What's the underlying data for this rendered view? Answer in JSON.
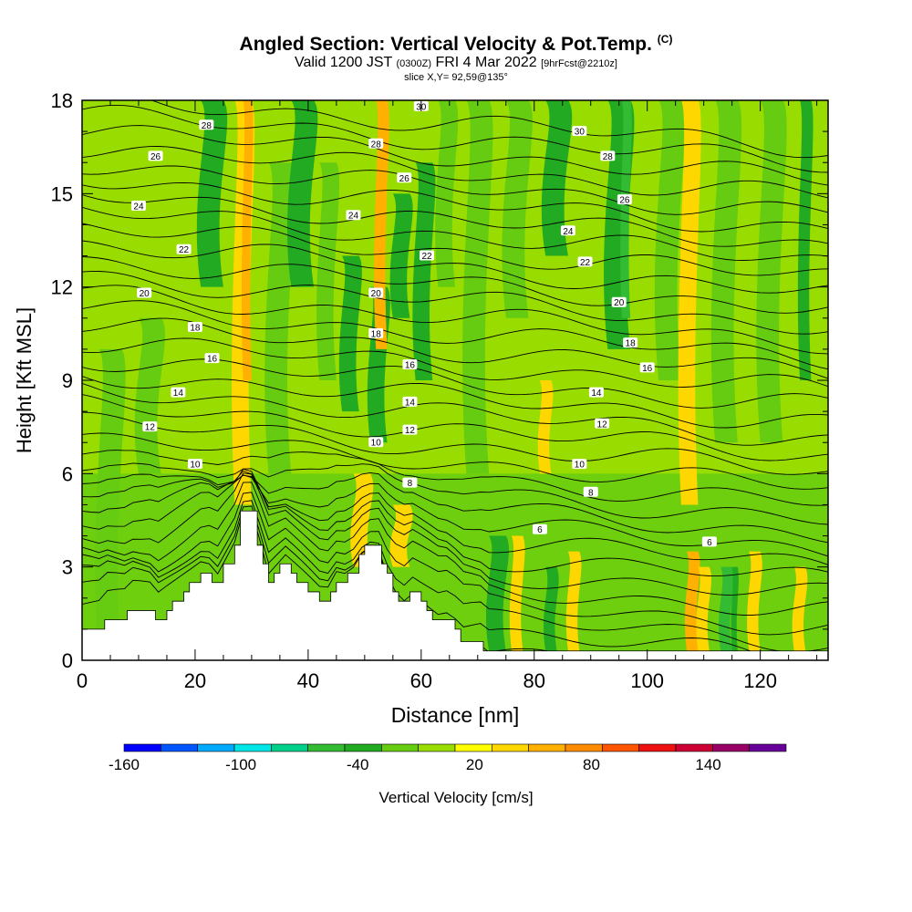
{
  "title": {
    "main": "Angled Section: Vertical Velocity & Pot.Temp.",
    "unit_tag": "(C)",
    "valid_prefix": "Valid 1200 JST",
    "valid_utc": "(0300Z)",
    "valid_date": "FRI 4 Mar 2022",
    "forecast": "[9hrFcst@2210z]",
    "slice": "slice X,Y= 92,59@135°"
  },
  "chart_data": {
    "type": "heatmap",
    "xlabel": "Distance [nm]",
    "ylabel": "Height [Kft MSL]",
    "xlim": [
      0,
      132
    ],
    "ylim": [
      0,
      18
    ],
    "x_ticks": [
      0,
      20,
      40,
      60,
      80,
      100,
      120
    ],
    "y_ticks": [
      0,
      3,
      6,
      9,
      12,
      15,
      18
    ],
    "colorbar": {
      "label": "Vertical Velocity [cm/s]",
      "tick_labels": [
        "-160",
        "-100",
        "-40",
        "20",
        "80",
        "140"
      ],
      "tick_values": [
        -160,
        -100,
        -40,
        20,
        80,
        140
      ],
      "range": [
        -160,
        180
      ],
      "step": 20,
      "colors": [
        "#0000ff",
        "#0055ff",
        "#00aaff",
        "#00e6e6",
        "#00d08a",
        "#33bb33",
        "#22aa22",
        "#66cc11",
        "#99dd00",
        "#ffff00",
        "#ffd700",
        "#ffb000",
        "#ff8c00",
        "#ff5500",
        "#ee1111",
        "#cc0033",
        "#990066",
        "#660099"
      ]
    },
    "terrain_profile": [
      [
        0,
        1.0
      ],
      [
        4,
        1.0
      ],
      [
        4,
        1.3
      ],
      [
        8,
        1.3
      ],
      [
        8,
        1.6
      ],
      [
        13,
        1.6
      ],
      [
        13,
        1.3
      ],
      [
        15,
        1.3
      ],
      [
        15,
        1.6
      ],
      [
        16,
        1.6
      ],
      [
        16,
        1.9
      ],
      [
        18,
        1.9
      ],
      [
        18,
        2.2
      ],
      [
        19,
        2.2
      ],
      [
        19,
        2.5
      ],
      [
        21,
        2.5
      ],
      [
        21,
        2.8
      ],
      [
        23,
        2.8
      ],
      [
        23,
        2.5
      ],
      [
        25,
        2.5
      ],
      [
        25,
        3.1
      ],
      [
        27,
        3.1
      ],
      [
        27,
        3.7
      ],
      [
        28,
        3.7
      ],
      [
        28,
        4.8
      ],
      [
        31,
        4.8
      ],
      [
        31,
        3.7
      ],
      [
        32,
        3.7
      ],
      [
        32,
        3.1
      ],
      [
        33,
        3.1
      ],
      [
        33,
        2.5
      ],
      [
        34,
        2.5
      ],
      [
        34,
        2.8
      ],
      [
        35,
        2.8
      ],
      [
        35,
        3.1
      ],
      [
        37,
        3.1
      ],
      [
        37,
        2.8
      ],
      [
        38,
        2.8
      ],
      [
        38,
        2.5
      ],
      [
        40,
        2.5
      ],
      [
        40,
        2.2
      ],
      [
        42,
        2.2
      ],
      [
        42,
        1.9
      ],
      [
        44,
        1.9
      ],
      [
        44,
        2.2
      ],
      [
        45,
        2.2
      ],
      [
        45,
        2.5
      ],
      [
        47,
        2.5
      ],
      [
        47,
        2.8
      ],
      [
        49,
        2.8
      ],
      [
        49,
        3.4
      ],
      [
        50,
        3.4
      ],
      [
        50,
        3.7
      ],
      [
        53,
        3.7
      ],
      [
        53,
        3.1
      ],
      [
        54,
        3.1
      ],
      [
        54,
        2.8
      ],
      [
        55,
        2.8
      ],
      [
        55,
        2.2
      ],
      [
        56,
        2.2
      ],
      [
        56,
        1.9
      ],
      [
        58,
        1.9
      ],
      [
        58,
        2.2
      ],
      [
        60,
        2.2
      ],
      [
        60,
        1.9
      ],
      [
        61,
        1.9
      ],
      [
        61,
        1.6
      ],
      [
        62,
        1.6
      ],
      [
        62,
        1.3
      ],
      [
        66,
        1.3
      ],
      [
        66,
        1.0
      ],
      [
        67,
        1.0
      ],
      [
        67,
        0.6
      ],
      [
        71,
        0.6
      ],
      [
        71,
        0.3
      ],
      [
        132,
        0.3
      ]
    ],
    "theta_contour_labels": [
      {
        "text": "6",
        "x": 81,
        "y": 4.2
      },
      {
        "text": "6",
        "x": 111,
        "y": 3.8
      },
      {
        "text": "8",
        "x": 58,
        "y": 5.7
      },
      {
        "text": "8",
        "x": 90,
        "y": 5.4
      },
      {
        "text": "10",
        "x": 20,
        "y": 6.3
      },
      {
        "text": "10",
        "x": 52,
        "y": 7.0
      },
      {
        "text": "10",
        "x": 88,
        "y": 6.3
      },
      {
        "text": "12",
        "x": 12,
        "y": 7.5
      },
      {
        "text": "12",
        "x": 58,
        "y": 7.4
      },
      {
        "text": "12",
        "x": 92,
        "y": 7.6
      },
      {
        "text": "14",
        "x": 17,
        "y": 8.6
      },
      {
        "text": "14",
        "x": 58,
        "y": 8.3
      },
      {
        "text": "14",
        "x": 91,
        "y": 8.6
      },
      {
        "text": "16",
        "x": 23,
        "y": 9.7
      },
      {
        "text": "16",
        "x": 58,
        "y": 9.5
      },
      {
        "text": "16",
        "x": 100,
        "y": 9.4
      },
      {
        "text": "18",
        "x": 20,
        "y": 10.7
      },
      {
        "text": "18",
        "x": 52,
        "y": 10.5
      },
      {
        "text": "18",
        "x": 97,
        "y": 10.2
      },
      {
        "text": "20",
        "x": 11,
        "y": 11.8
      },
      {
        "text": "20",
        "x": 52,
        "y": 11.8
      },
      {
        "text": "20",
        "x": 95,
        "y": 11.5
      },
      {
        "text": "22",
        "x": 18,
        "y": 13.2
      },
      {
        "text": "22",
        "x": 61,
        "y": 13.0
      },
      {
        "text": "22",
        "x": 89,
        "y": 12.8
      },
      {
        "text": "24",
        "x": 10,
        "y": 14.6
      },
      {
        "text": "24",
        "x": 48,
        "y": 14.3
      },
      {
        "text": "24",
        "x": 86,
        "y": 13.8
      },
      {
        "text": "26",
        "x": 13,
        "y": 16.2
      },
      {
        "text": "26",
        "x": 57,
        "y": 15.5
      },
      {
        "text": "26",
        "x": 96,
        "y": 14.8
      },
      {
        "text": "28",
        "x": 22,
        "y": 17.2
      },
      {
        "text": "28",
        "x": 52,
        "y": 16.6
      },
      {
        "text": "28",
        "x": 93,
        "y": 16.2
      },
      {
        "text": "30",
        "x": 60,
        "y": 17.8
      },
      {
        "text": "30",
        "x": 88,
        "y": 17.0
      }
    ],
    "velocity_bands": [
      {
        "x": 3,
        "w": 4,
        "y0": 0,
        "y1": 10,
        "v": -20
      },
      {
        "x": 10,
        "w": 4,
        "y0": 6,
        "y1": 11,
        "v": -20
      },
      {
        "x": 21,
        "w": 4,
        "y0": 12,
        "y1": 18,
        "v": -40
      },
      {
        "x": 27,
        "w": 3,
        "y0": 5,
        "y1": 18,
        "v": 40
      },
      {
        "x": 28.5,
        "w": 1.5,
        "y0": 9,
        "y1": 18,
        "v": 60
      },
      {
        "x": 33,
        "w": 4,
        "y0": 6,
        "y1": 16,
        "v": -20
      },
      {
        "x": 37,
        "w": 4,
        "y0": 12,
        "y1": 18,
        "v": -40
      },
      {
        "x": 42,
        "w": 3,
        "y0": 9,
        "y1": 16,
        "v": -20
      },
      {
        "x": 46,
        "w": 3,
        "y0": 8,
        "y1": 13,
        "v": -40
      },
      {
        "x": 51,
        "w": 3,
        "y0": 7,
        "y1": 12,
        "v": -40
      },
      {
        "x": 52,
        "w": 2,
        "y0": 10,
        "y1": 18,
        "v": 60
      },
      {
        "x": 55,
        "w": 3,
        "y0": 11,
        "y1": 15,
        "v": -40
      },
      {
        "x": 59,
        "w": 3,
        "y0": 9,
        "y1": 16,
        "v": -40
      },
      {
        "x": 63,
        "w": 3,
        "y0": 12,
        "y1": 18,
        "v": -20
      },
      {
        "x": 68,
        "w": 4,
        "y0": 6,
        "y1": 18,
        "v": -20
      },
      {
        "x": 75,
        "w": 4,
        "y0": 11,
        "y1": 18,
        "v": -20
      },
      {
        "x": 82,
        "w": 4,
        "y0": 13,
        "y1": 18,
        "v": -40
      },
      {
        "x": 81,
        "w": 2,
        "y0": 6,
        "y1": 9,
        "v": 40
      },
      {
        "x": 93,
        "w": 4,
        "y0": 10,
        "y1": 18,
        "v": -40
      },
      {
        "x": 95.5,
        "w": 1.5,
        "y0": 11,
        "y1": 18,
        "v": -60
      },
      {
        "x": 102,
        "w": 4,
        "y0": 9,
        "y1": 18,
        "v": -20
      },
      {
        "x": 106,
        "w": 3,
        "y0": 5,
        "y1": 18,
        "v": 40
      },
      {
        "x": 112,
        "w": 4,
        "y0": 7,
        "y1": 18,
        "v": -20
      },
      {
        "x": 120,
        "w": 4,
        "y0": 7,
        "y1": 18,
        "v": -20
      },
      {
        "x": 127,
        "w": 2,
        "y0": 9,
        "y1": 18,
        "v": -40
      },
      {
        "x": 72,
        "w": 3,
        "y0": 0.3,
        "y1": 4,
        "v": -40
      },
      {
        "x": 76,
        "w": 2,
        "y0": 0.3,
        "y1": 4,
        "v": 40
      },
      {
        "x": 82,
        "w": 2,
        "y0": 0.3,
        "y1": 3,
        "v": -40
      },
      {
        "x": 86,
        "w": 2,
        "y0": 0.3,
        "y1": 3.5,
        "v": 40
      },
      {
        "x": 107,
        "w": 2,
        "y0": 0.3,
        "y1": 3.5,
        "v": 60
      },
      {
        "x": 109,
        "w": 2,
        "y0": 0.3,
        "y1": 3,
        "v": 40
      },
      {
        "x": 113,
        "w": 2,
        "y0": 0.3,
        "y1": 3,
        "v": -60
      },
      {
        "x": 115,
        "w": 1,
        "y0": 0.3,
        "y1": 3,
        "v": -40
      },
      {
        "x": 118,
        "w": 2,
        "y0": 0.3,
        "y1": 3.5,
        "v": 40
      },
      {
        "x": 126,
        "w": 2,
        "y0": 0.3,
        "y1": 3,
        "v": 40
      },
      {
        "x": 48,
        "w": 3,
        "y0": 3,
        "y1": 6,
        "v": 40
      },
      {
        "x": 55,
        "w": 3,
        "y0": 3,
        "y1": 5,
        "v": 40
      }
    ]
  }
}
